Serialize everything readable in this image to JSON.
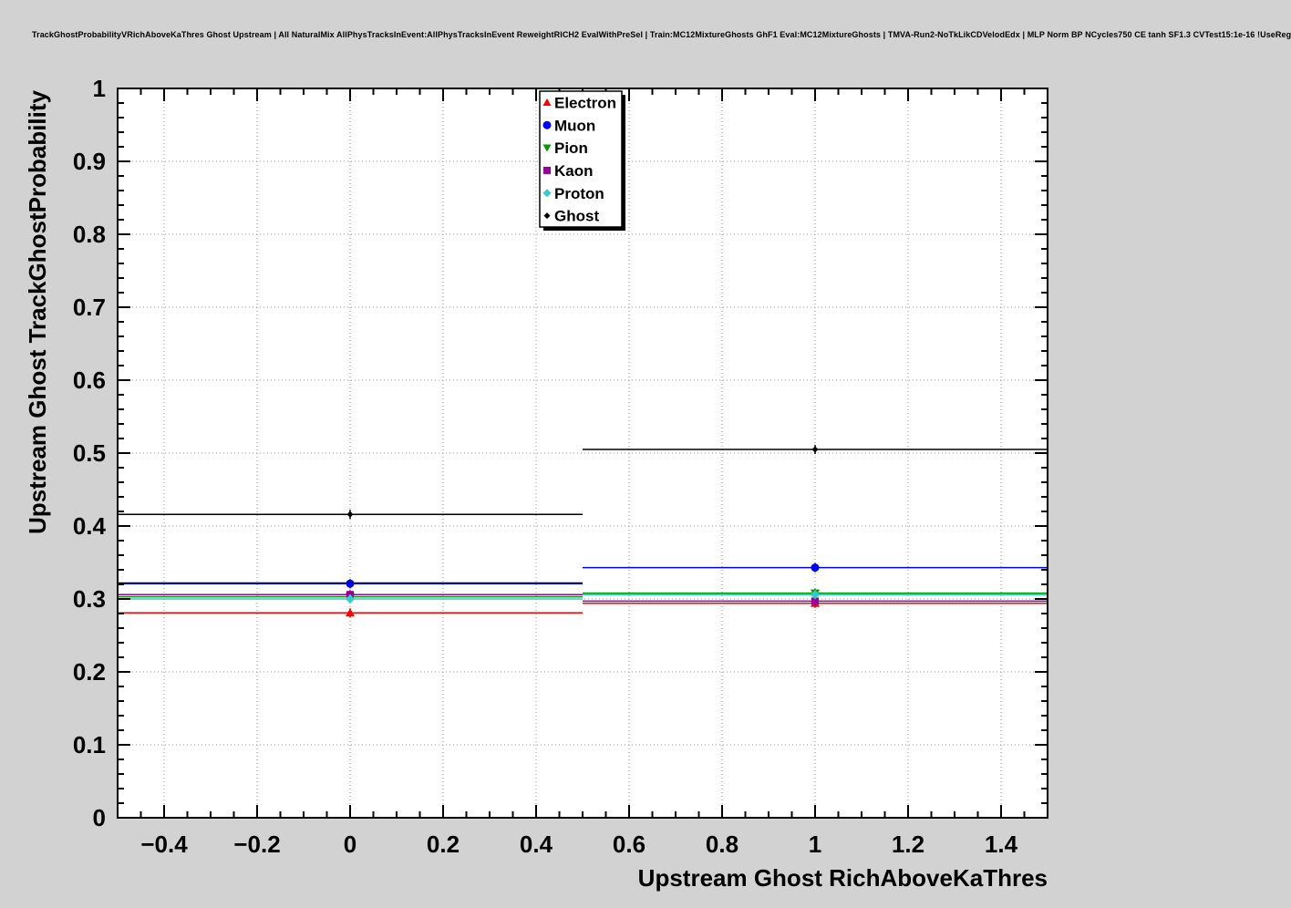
{
  "header": {
    "title": "TrackGhostProbabilityVRichAboveKaThres Ghost Upstream | All NaturalMix AllPhysTracksInEvent:AllPhysTracksInEvent ReweightRICH2 EvalWithPreSel | Train:MC12MixtureGhosts GhF1 Eval:MC12MixtureGhosts | TMVA-Run2-NoTkLikCDVelodEdx | MLP Norm BP NCycles750 CE tanh SF1.3 CVTest15:1e-16 !UseReg"
  },
  "chart_data": {
    "type": "line",
    "title": "TrackGhostProbabilityVRichAboveKaThres Ghost Upstream",
    "xlabel": "Upstream Ghost RichAboveKaThres",
    "ylabel": "Upstream Ghost TrackGhostProbability",
    "xlim": [
      -0.5,
      1.5
    ],
    "ylim": [
      0,
      1
    ],
    "grid": "dotted",
    "legend_position": "top-center",
    "x_ticks": {
      "values": [
        -0.4,
        -0.2,
        0,
        0.2,
        0.4,
        0.6,
        0.8,
        1,
        1.2,
        1.4
      ],
      "labels": [
        "−0.4",
        "−0.2",
        "0",
        "0.2",
        "0.4",
        "0.6",
        "0.8",
        "1",
        "1.2",
        "1.4"
      ]
    },
    "y_ticks": {
      "values": [
        0,
        0.1,
        0.2,
        0.3,
        0.4,
        0.5,
        0.6,
        0.7,
        0.8,
        0.9,
        1
      ],
      "labels": [
        "0",
        "0.1",
        "0.2",
        "0.3",
        "0.4",
        "0.5",
        "0.6",
        "0.7",
        "0.8",
        "0.9",
        "1"
      ]
    },
    "bin_edges": [
      -0.5,
      0.5,
      1.5
    ],
    "bin_centers": [
      0,
      1
    ],
    "series": [
      {
        "name": "Electron",
        "color": "#ff0000",
        "marker": "triangle-up",
        "marker_size": 5,
        "values": [
          0.281,
          0.294
        ]
      },
      {
        "name": "Muon",
        "color": "#0000ff",
        "marker": "circle",
        "marker_size": 4.5,
        "values": [
          0.321,
          0.343
        ]
      },
      {
        "name": "Pion",
        "color": "#009900",
        "marker": "triangle-down",
        "marker_size": 5,
        "values": [
          0.303,
          0.308
        ]
      },
      {
        "name": "Kaon",
        "color": "#990099",
        "marker": "square",
        "marker_size": 4,
        "values": [
          0.306,
          0.297
        ]
      },
      {
        "name": "Proton",
        "color": "#33cccc",
        "marker": "diamond",
        "marker_size": 5,
        "values": [
          0.3,
          0.306
        ]
      },
      {
        "name": "Ghost",
        "color": "#000000",
        "marker": "diamond",
        "marker_size": 3.5,
        "values": [
          0.416,
          0.505
        ]
      }
    ],
    "extra_lines": [
      {
        "color": "#000000",
        "bin": 0,
        "value": 0.322
      }
    ]
  }
}
